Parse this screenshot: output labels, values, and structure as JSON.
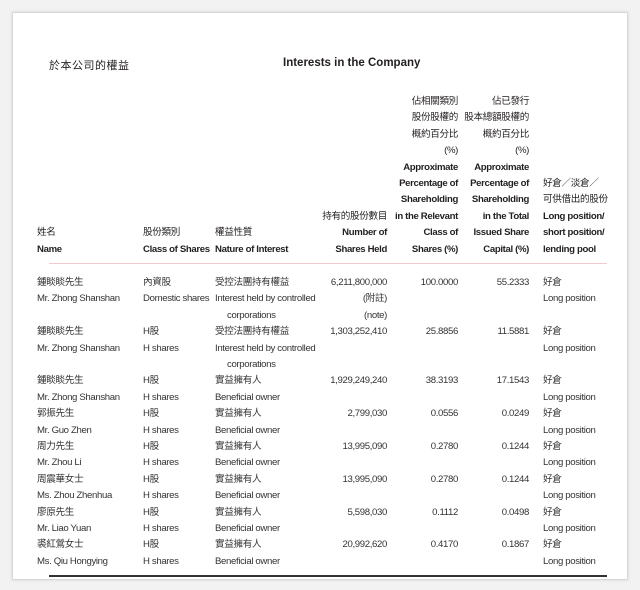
{
  "title_zh": "於本公司的權益",
  "title_en": "Interests in the Company",
  "headers": {
    "name": [
      "姓名",
      "Name"
    ],
    "class": [
      "股份類別",
      "Class of Shares"
    ],
    "nature": [
      "權益性質",
      "Nature of Interest"
    ],
    "shares": [
      "持有的股份數目",
      "Number of",
      "Shares Held"
    ],
    "pct_class": [
      "佔相關類別",
      "股份股權的",
      "概約百分比",
      "(%)",
      "Approximate",
      "Percentage of",
      "Shareholding",
      "in the Relevant",
      "Class of",
      "Shares (%)"
    ],
    "pct_total": [
      "佔已發行",
      "股本總額股權的",
      "概約百分比",
      "(%)",
      "Approximate",
      "Percentage of",
      "Shareholding",
      "in the Total",
      "Issued Share",
      "Capital (%)"
    ],
    "position": [
      "好倉／淡倉／",
      "可供借出的股份",
      "Long position/",
      "short position/",
      "lending pool"
    ]
  },
  "rows": [
    {
      "name_zh": "鍾睒睒先生",
      "name_en": "Mr. Zhong Shanshan",
      "class_zh": "內資股",
      "class_en": "Domestic shares",
      "nature_zh": "受控法團持有權益",
      "nature_en": [
        "Interest held by controlled",
        "corporations"
      ],
      "shares": "6,211,800,000",
      "shares_note": [
        "(附註)",
        "(note)"
      ],
      "pct_class": "100.0000",
      "pct_total": "55.2333",
      "pos_zh": "好倉",
      "pos_en": "Long position"
    },
    {
      "name_zh": "鍾睒睒先生",
      "name_en": "Mr. Zhong Shanshan",
      "class_zh": "H股",
      "class_en": "H shares",
      "nature_zh": "受控法團持有權益",
      "nature_en": [
        "Interest held by controlled",
        "corporations"
      ],
      "shares": "1,303,252,410",
      "pct_class": "25.8856",
      "pct_total": "11.5881",
      "pos_zh": "好倉",
      "pos_en": "Long position"
    },
    {
      "name_zh": "鍾睒睒先生",
      "name_en": "Mr. Zhong Shanshan",
      "class_zh": "H股",
      "class_en": "H shares",
      "nature_zh": "實益擁有人",
      "nature_en": [
        "Beneficial owner"
      ],
      "shares": "1,929,249,240",
      "pct_class": "38.3193",
      "pct_total": "17.1543",
      "pos_zh": "好倉",
      "pos_en": "Long position"
    },
    {
      "name_zh": "郭振先生",
      "name_en": "Mr. Guo Zhen",
      "class_zh": "H股",
      "class_en": "H shares",
      "nature_zh": "實益擁有人",
      "nature_en": [
        "Beneficial owner"
      ],
      "shares": "2,799,030",
      "pct_class": "0.0556",
      "pct_total": "0.0249",
      "pos_zh": "好倉",
      "pos_en": "Long position"
    },
    {
      "name_zh": "周力先生",
      "name_en": "Mr. Zhou Li",
      "class_zh": "H股",
      "class_en": "H shares",
      "nature_zh": "實益擁有人",
      "nature_en": [
        "Beneficial owner"
      ],
      "shares": "13,995,090",
      "pct_class": "0.2780",
      "pct_total": "0.1244",
      "pos_zh": "好倉",
      "pos_en": "Long position"
    },
    {
      "name_zh": "周震華女士",
      "name_en": "Ms. Zhou Zhenhua",
      "class_zh": "H股",
      "class_en": "H shares",
      "nature_zh": "實益擁有人",
      "nature_en": [
        "Beneficial owner"
      ],
      "shares": "13,995,090",
      "pct_class": "0.2780",
      "pct_total": "0.1244",
      "pos_zh": "好倉",
      "pos_en": "Long position"
    },
    {
      "name_zh": "廖原先生",
      "name_en": "Mr. Liao Yuan",
      "class_zh": "H股",
      "class_en": "H shares",
      "nature_zh": "實益擁有人",
      "nature_en": [
        "Beneficial owner"
      ],
      "shares": "5,598,030",
      "pct_class": "0.1112",
      "pct_total": "0.0498",
      "pos_zh": "好倉",
      "pos_en": "Long position"
    },
    {
      "name_zh": "裘紅鶯女士",
      "name_en": "Ms. Qiu Hongying",
      "class_zh": "H股",
      "class_en": "H shares",
      "nature_zh": "實益擁有人",
      "nature_en": [
        "Beneficial owner"
      ],
      "shares": "20,992,620",
      "pct_class": "0.4170",
      "pct_total": "0.1867",
      "pos_zh": "好倉",
      "pos_en": "Long position"
    }
  ]
}
